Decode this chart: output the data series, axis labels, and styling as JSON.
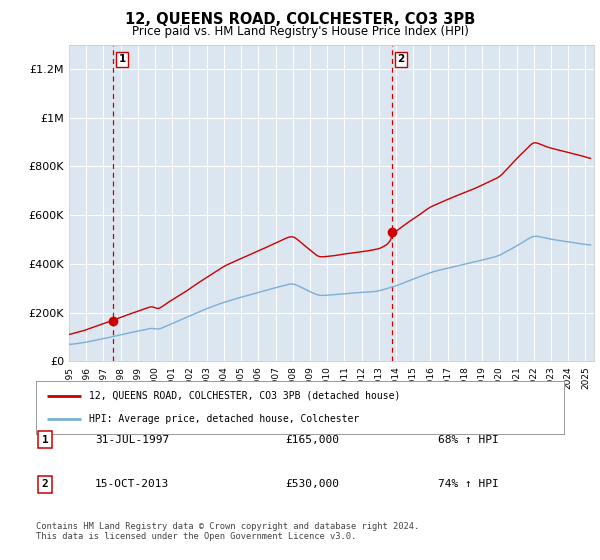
{
  "title": "12, QUEENS ROAD, COLCHESTER, CO3 3PB",
  "subtitle": "Price paid vs. HM Land Registry's House Price Index (HPI)",
  "plot_bg_color": "#dce6f1",
  "hpi_color": "#7bafd4",
  "price_color": "#cc0000",
  "dashed_color": "#cc0000",
  "marker_color": "#cc0000",
  "sale1_x": 1997.58,
  "sale1_y": 165000,
  "sale2_x": 2013.79,
  "sale2_y": 530000,
  "legend_line1": "12, QUEENS ROAD, COLCHESTER, CO3 3PB (detached house)",
  "legend_line2": "HPI: Average price, detached house, Colchester",
  "table_row1_num": "1",
  "table_row1_date": "31-JUL-1997",
  "table_row1_price": "£165,000",
  "table_row1_hpi": "68% ↑ HPI",
  "table_row2_num": "2",
  "table_row2_date": "15-OCT-2013",
  "table_row2_price": "£530,000",
  "table_row2_hpi": "74% ↑ HPI",
  "footer": "Contains HM Land Registry data © Crown copyright and database right 2024.\nThis data is licensed under the Open Government Licence v3.0.",
  "ylim": [
    0,
    1300000
  ],
  "yticks": [
    0,
    200000,
    400000,
    600000,
    800000,
    1000000,
    1200000
  ],
  "ytick_labels": [
    "£0",
    "£200K",
    "£400K",
    "£600K",
    "£800K",
    "£1M",
    "£1.2M"
  ],
  "xmin": 1995.0,
  "xmax": 2025.5,
  "xticks": [
    1995,
    1996,
    1997,
    1998,
    1999,
    2000,
    2001,
    2002,
    2003,
    2004,
    2005,
    2006,
    2007,
    2008,
    2009,
    2010,
    2011,
    2012,
    2013,
    2014,
    2015,
    2016,
    2017,
    2018,
    2019,
    2020,
    2021,
    2022,
    2023,
    2024,
    2025
  ]
}
